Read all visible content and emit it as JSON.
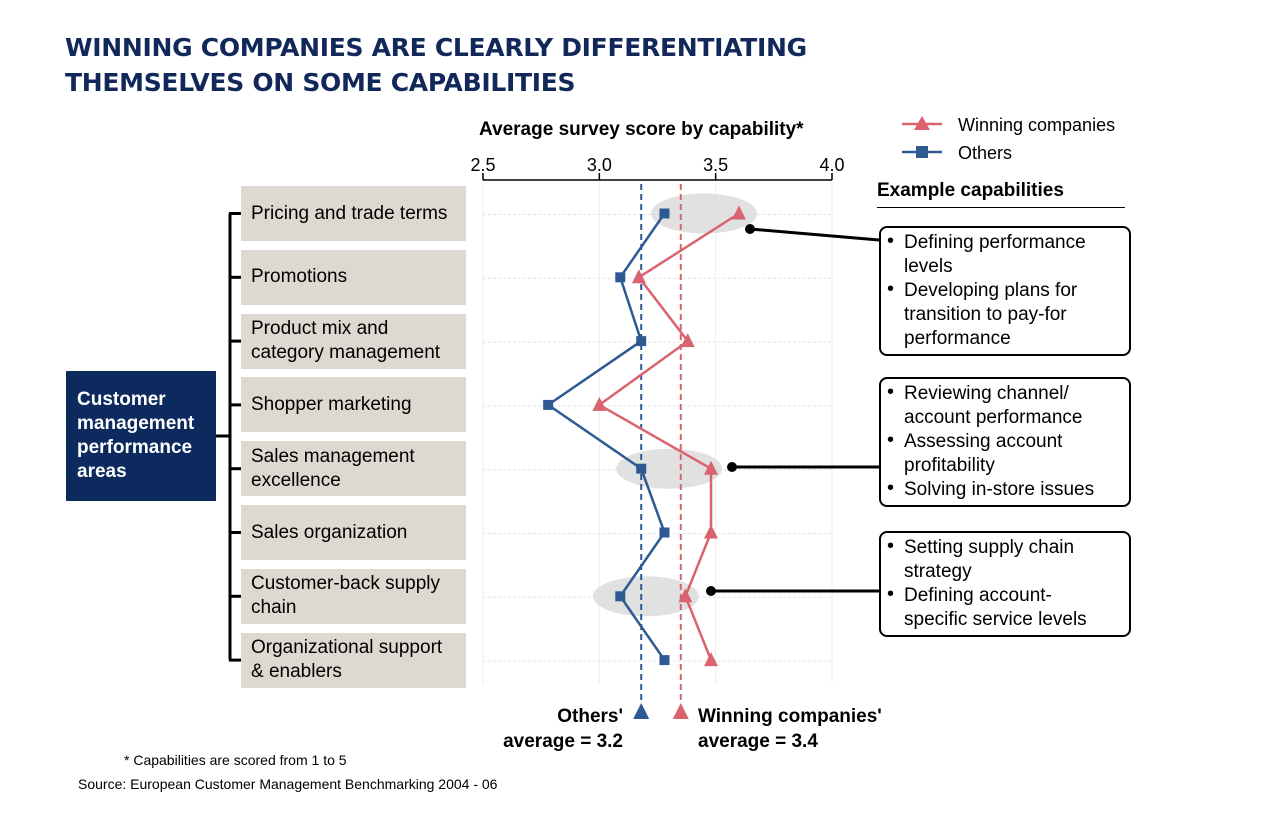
{
  "title": {
    "line1": "WINNING COMPANIES ARE CLEARLY DIFFERENTIATING",
    "line2": "THEMSELVES ON SOME CAPABILITIES"
  },
  "root_box": {
    "lines": [
      "Customer",
      "management",
      "performance",
      "areas"
    ],
    "color": "#0d2a5e"
  },
  "legend": {
    "winning": "Winning companies",
    "others": "Others"
  },
  "chart_data": {
    "type": "line",
    "title": "Average survey score by capability*",
    "xlabel": "Average survey score by capability*",
    "ylabel": "Customer management performance areas",
    "xlim": [
      2.5,
      4.0
    ],
    "xticks": [
      "2.5",
      "3.0",
      "3.5",
      "4.0"
    ],
    "xtick_values": [
      2.5,
      3.0,
      3.5,
      4.0
    ],
    "categories": [
      [
        "Pricing and trade terms"
      ],
      [
        "Promotions"
      ],
      [
        "Product mix and",
        "category management"
      ],
      [
        "Shopper marketing"
      ],
      [
        "Sales management",
        "excellence"
      ],
      [
        "Sales organization"
      ],
      [
        "Customer-back supply",
        "chain"
      ],
      [
        "Organizational support",
        "& enablers"
      ]
    ],
    "series": [
      {
        "name": "Winning companies",
        "color": "#d9636e",
        "marker": "triangle",
        "values": [
          3.6,
          3.17,
          3.38,
          3.0,
          3.48,
          3.48,
          3.37,
          3.48
        ]
      },
      {
        "name": "Others",
        "color": "#2e5a93",
        "marker": "square",
        "values": [
          3.28,
          3.09,
          3.18,
          2.78,
          3.18,
          3.28,
          3.09,
          3.28
        ]
      }
    ],
    "averages": [
      {
        "name": "Others",
        "value": 3.18,
        "label": [
          "Others'",
          "average = 3.2"
        ],
        "color": "#2e5a93"
      },
      {
        "name": "Winning companies",
        "value": 3.35,
        "label": [
          "Winning companies'",
          "average  =  3.4"
        ],
        "color": "#d9636e"
      }
    ],
    "highlights": [
      {
        "category_index": 0,
        "center": 3.45
      },
      {
        "category_index": 4,
        "center": 3.3
      },
      {
        "category_index": 6,
        "center": 3.2
      }
    ]
  },
  "example_capabilities": {
    "heading": "Example capabilities",
    "boxes": [
      {
        "links_to_category": 0,
        "bullets": [
          [
            "Defining performance",
            "levels"
          ],
          [
            "Developing plans for",
            "transition to pay-for",
            "performance"
          ]
        ]
      },
      {
        "links_to_category": 4,
        "bullets": [
          [
            "Reviewing channel/",
            "account performance"
          ],
          [
            "Assessing account",
            "profitability"
          ],
          [
            "Solving in-store issues"
          ]
        ]
      },
      {
        "links_to_category": 6,
        "bullets": [
          [
            "Setting supply chain",
            "strategy"
          ],
          [
            "Defining account-",
            "specific service levels"
          ]
        ]
      }
    ]
  },
  "footnotes": {
    "note": "* Capabilities are scored from 1 to 5",
    "source": "Source: European Customer Management Benchmarking 2004 - 06"
  }
}
